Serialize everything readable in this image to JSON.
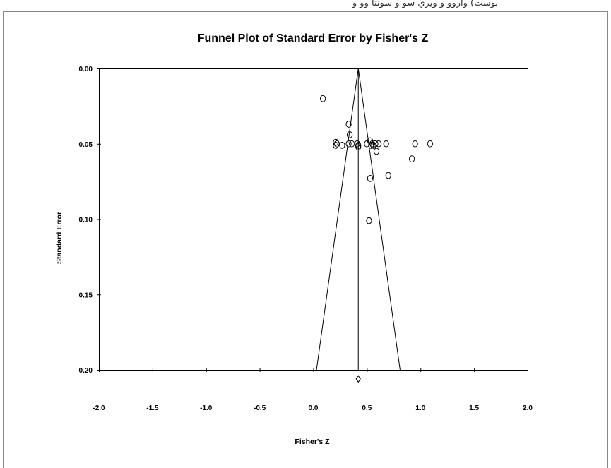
{
  "header_fragment": "ﺑﻮﺳﺖ) ﻭﺍﺭﻭﻭ ﻭ ﻭﻳﺮﻱ ﺳﻮ ﻭ ﺳﻮﻧﺘﺎ ﻭﻭ ﻭ",
  "chart_data": {
    "type": "scatter",
    "title": "Funnel Plot of Standard Error by Fisher's Z",
    "xlabel": "Fisher's Z",
    "ylabel": "Standard Error",
    "xlim": [
      -2.0,
      2.0
    ],
    "ylim": [
      0.0,
      0.2
    ],
    "y_inverted": true,
    "x_ticks": [
      "-2.0",
      "-1.5",
      "-1.0",
      "-0.5",
      "0.0",
      "0.5",
      "1.0",
      "1.5",
      "2.0"
    ],
    "y_ticks": [
      "0.00",
      "0.05",
      "0.10",
      "0.15",
      "0.20"
    ],
    "grid": false,
    "legend": "none",
    "pooled_effect": 0.42,
    "funnel": {
      "apex": [
        0.42,
        0.0
      ],
      "left_base": [
        0.03,
        0.2
      ],
      "right_base": [
        0.81,
        0.2
      ]
    },
    "combined_estimate_marker": {
      "x": 0.42,
      "y": 0.206,
      "shape": "diamond"
    },
    "points": [
      {
        "x": 0.09,
        "y": 0.02
      },
      {
        "x": 0.33,
        "y": 0.037
      },
      {
        "x": 0.34,
        "y": 0.044
      },
      {
        "x": 0.21,
        "y": 0.049
      },
      {
        "x": 0.22,
        "y": 0.05
      },
      {
        "x": 0.21,
        "y": 0.051
      },
      {
        "x": 0.27,
        "y": 0.051
      },
      {
        "x": 0.33,
        "y": 0.05
      },
      {
        "x": 0.36,
        "y": 0.05
      },
      {
        "x": 0.41,
        "y": 0.05
      },
      {
        "x": 0.42,
        "y": 0.051
      },
      {
        "x": 0.42,
        "y": 0.052
      },
      {
        "x": 0.5,
        "y": 0.05
      },
      {
        "x": 0.53,
        "y": 0.048
      },
      {
        "x": 0.54,
        "y": 0.051
      },
      {
        "x": 0.55,
        "y": 0.05
      },
      {
        "x": 0.56,
        "y": 0.051
      },
      {
        "x": 0.58,
        "y": 0.05
      },
      {
        "x": 0.61,
        "y": 0.05
      },
      {
        "x": 0.59,
        "y": 0.055
      },
      {
        "x": 0.68,
        "y": 0.05
      },
      {
        "x": 0.95,
        "y": 0.05
      },
      {
        "x": 1.09,
        "y": 0.05
      },
      {
        "x": 0.92,
        "y": 0.06
      },
      {
        "x": 0.7,
        "y": 0.071
      },
      {
        "x": 0.53,
        "y": 0.073
      },
      {
        "x": 0.52,
        "y": 0.101
      }
    ]
  }
}
